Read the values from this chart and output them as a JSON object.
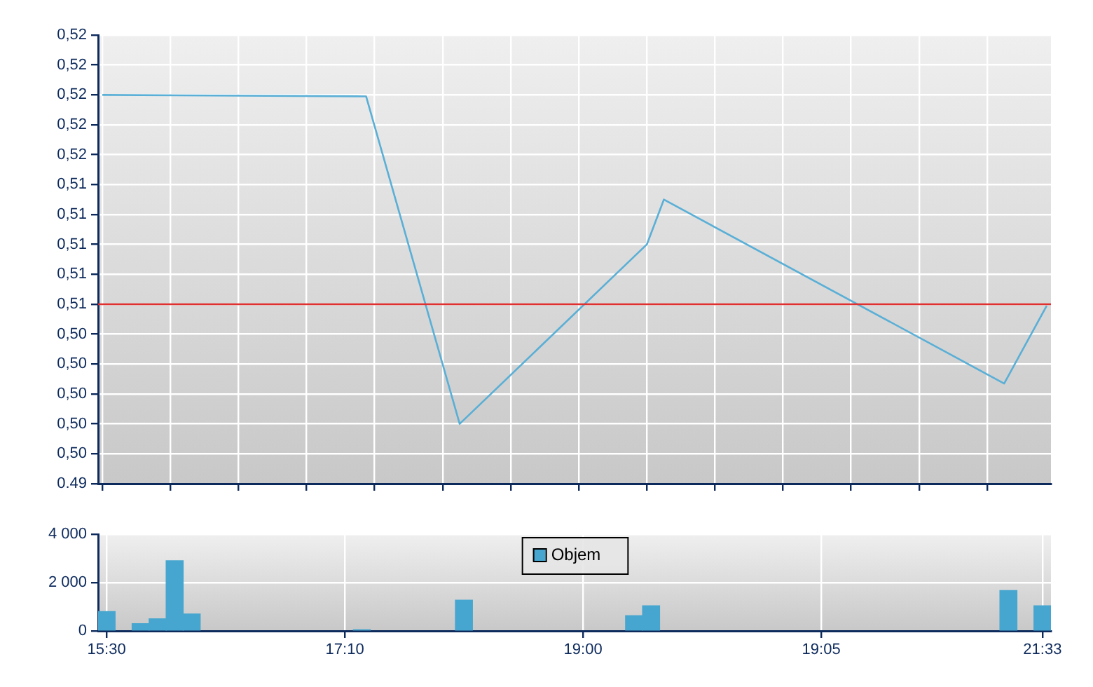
{
  "chart_data": [
    {
      "type": "line",
      "color": "#5aafd6",
      "categories": [
        null,
        null,
        null,
        null,
        null,
        null,
        null,
        null,
        null,
        null,
        null,
        null,
        null,
        null,
        null,
        null,
        null,
        null,
        null,
        null,
        null,
        null,
        null,
        null,
        null,
        null,
        null,
        null,
        null,
        null,
        null,
        null,
        null,
        null,
        null,
        null,
        null,
        null,
        null,
        null,
        null,
        null,
        null,
        null,
        null,
        null,
        null,
        null,
        null,
        null,
        null,
        null,
        null,
        null,
        null,
        null,
        null,
        null,
        null,
        null,
        null,
        null,
        null,
        null,
        null,
        null,
        null,
        null,
        null,
        null,
        null,
        null,
        null,
        null,
        null,
        null,
        null,
        null,
        null,
        null,
        null,
        null,
        null,
        null,
        null,
        null,
        null,
        null,
        null,
        null,
        null,
        null,
        null,
        null,
        null,
        null,
        null,
        null,
        null,
        null,
        null,
        null,
        null,
        null,
        null,
        null,
        null,
        null,
        null,
        null,
        null,
        null
      ],
      "values": [
        0.52,
        null,
        null,
        null,
        null,
        null,
        null,
        null,
        null,
        null,
        null,
        null,
        null,
        null,
        null,
        null,
        null,
        null,
        null,
        null,
        null,
        null,
        null,
        null,
        null,
        null,
        null,
        null,
        null,
        null,
        null,
        0.5199,
        null,
        null,
        null,
        null,
        null,
        null,
        null,
        null,
        null,
        null,
        0.498,
        null,
        null,
        null,
        null,
        null,
        null,
        null,
        null,
        null,
        null,
        null,
        null,
        null,
        null,
        null,
        null,
        null,
        null,
        null,
        null,
        null,
        0.51,
        null,
        0.513,
        null,
        null,
        null,
        null,
        null,
        null,
        null,
        null,
        null,
        null,
        null,
        null,
        null,
        null,
        null,
        null,
        null,
        null,
        null,
        null,
        null,
        null,
        null,
        null,
        null,
        null,
        null,
        null,
        null,
        null,
        null,
        null,
        null,
        null,
        null,
        null,
        null,
        null,
        null,
        0.5007,
        null,
        null,
        null,
        null,
        0.5059
      ],
      "ylim": [
        0.494,
        0.524
      ],
      "yticks": [
        {
          "value": 0.494,
          "label": "0.49"
        },
        {
          "value": 0.496,
          "label": "0,50"
        },
        {
          "value": 0.498,
          "label": "0,50"
        },
        {
          "value": 0.5,
          "label": "0,50"
        },
        {
          "value": 0.502,
          "label": "0,50"
        },
        {
          "value": 0.504,
          "label": "0,50"
        },
        {
          "value": 0.506,
          "label": "0,51"
        },
        {
          "value": 0.508,
          "label": "0,51"
        },
        {
          "value": 0.51,
          "label": "0,51"
        },
        {
          "value": 0.512,
          "label": "0,51"
        },
        {
          "value": 0.514,
          "label": "0,51"
        },
        {
          "value": 0.516,
          "label": "0,52"
        },
        {
          "value": 0.518,
          "label": "0,52"
        },
        {
          "value": 0.52,
          "label": "0,52"
        },
        {
          "value": 0.522,
          "label": "0,52"
        },
        {
          "value": 0.524,
          "label": "0,52"
        }
      ],
      "ref_lines": [
        {
          "axis": "y",
          "value": 0.506,
          "color": "#e03030"
        }
      ],
      "grid": true
    },
    {
      "type": "bar",
      "categories": [
        "15:30",
        null,
        null,
        null,
        null,
        null,
        null,
        null,
        null,
        null,
        null,
        null,
        null,
        null,
        "17:10",
        null,
        null,
        null,
        null,
        null,
        null,
        null,
        null,
        null,
        null,
        null,
        null,
        null,
        "19:00",
        null,
        null,
        null,
        null,
        null,
        null,
        null,
        null,
        null,
        null,
        null,
        null,
        null,
        "19:05",
        null,
        null,
        null,
        null,
        null,
        null,
        null,
        null,
        null,
        null,
        null,
        null,
        "21:33"
      ],
      "series": [
        {
          "name": "Objem",
          "color": "#46a6cf",
          "values": [
            800,
            null,
            300,
            500,
            2900,
            700,
            null,
            null,
            null,
            null,
            null,
            null,
            null,
            null,
            null,
            50,
            null,
            null,
            null,
            null,
            null,
            1270,
            null,
            null,
            null,
            null,
            null,
            null,
            null,
            null,
            null,
            630,
            1040,
            null,
            null,
            null,
            null,
            null,
            null,
            null,
            null,
            null,
            null,
            null,
            null,
            null,
            null,
            null,
            null,
            null,
            null,
            null,
            null,
            1670,
            null,
            1040
          ]
        }
      ],
      "ylim": [
        0,
        4000
      ],
      "yticks": [
        {
          "value": 0,
          "label": "0"
        },
        {
          "value": 2000,
          "label": "2 000"
        },
        {
          "value": 4000,
          "label": "4 000"
        }
      ],
      "grid": true,
      "legend": "top"
    }
  ]
}
